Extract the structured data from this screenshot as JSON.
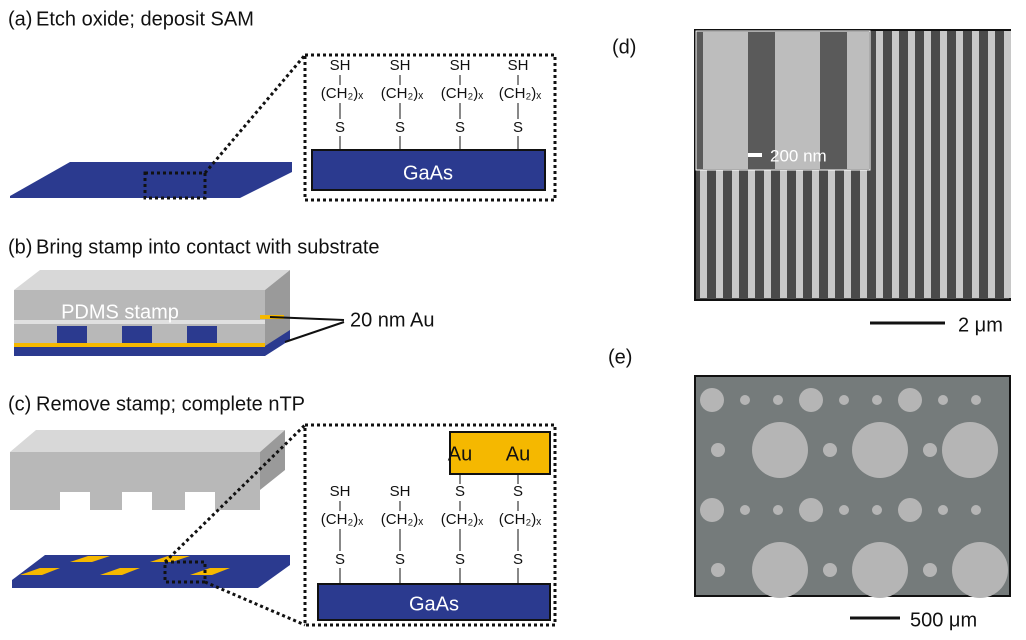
{
  "panel_a": {
    "label": "(a)",
    "title": "Etch oxide; deposit SAM",
    "molecules": [
      {
        "head": "SH",
        "chain": "(CH₂)ₓ",
        "anchor": "S"
      },
      {
        "head": "SH",
        "chain": "(CH₂)ₓ",
        "anchor": "S"
      },
      {
        "head": "SH",
        "chain": "(CH₂)ₓ",
        "anchor": "S"
      },
      {
        "head": "SH",
        "chain": "(CH₂)ₓ",
        "anchor": "S"
      }
    ],
    "substrate": "GaAs"
  },
  "panel_b": {
    "label": "(b)",
    "title": "Bring stamp into contact with substrate",
    "stamp": "PDMS stamp",
    "gold": "20 nm Au"
  },
  "panel_c": {
    "label": "(c)",
    "title": "Remove stamp; complete nTP",
    "gold_labels": [
      "Au",
      "Au"
    ],
    "molecules": [
      {
        "head": "SH",
        "chain": "(CH₂)ₓ",
        "anchor": "S"
      },
      {
        "head": "SH",
        "chain": "(CH₂)ₓ",
        "anchor": "S"
      },
      {
        "head": "S",
        "chain": "(CH₂)ₓ",
        "anchor": "S"
      },
      {
        "head": "S",
        "chain": "(CH₂)ₓ",
        "anchor": "S"
      }
    ],
    "substrate": "GaAs"
  },
  "panel_d": {
    "label": "(d)",
    "inset_scale": "200 nm",
    "scale": "2 μm"
  },
  "panel_e": {
    "label": "(e)",
    "scale": "500 μm"
  }
}
